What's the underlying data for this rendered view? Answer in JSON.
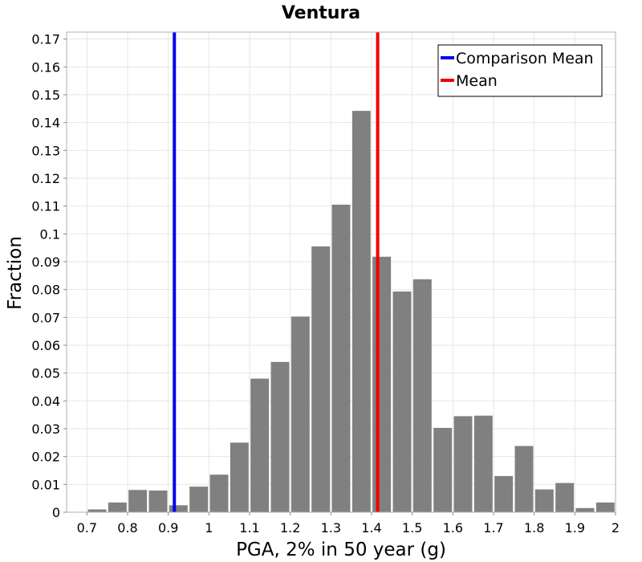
{
  "chart_data": {
    "type": "bar",
    "title": "Ventura",
    "xlabel": "PGA, 2% in 50 year (g)",
    "ylabel": "Fraction",
    "xlim": [
      0.65,
      2.0
    ],
    "ylim": [
      0,
      0.1725
    ],
    "xticks": [
      "0.7",
      "0.8",
      "0.9",
      "1",
      "1.1",
      "1.2",
      "1.3",
      "1.4",
      "1.5",
      "1.6",
      "1.7",
      "1.8",
      "1.9",
      "2"
    ],
    "yticks": [
      "0",
      "0.01",
      "0.02",
      "0.03",
      "0.04",
      "0.05",
      "0.06",
      "0.07",
      "0.08",
      "0.09",
      "0.1",
      "0.11",
      "0.12",
      "0.13",
      "0.14",
      "0.15",
      "0.16",
      "0.17"
    ],
    "bin_width": 0.05,
    "bin_centers": [
      0.725,
      0.775,
      0.825,
      0.875,
      0.925,
      0.975,
      1.025,
      1.075,
      1.125,
      1.175,
      1.225,
      1.275,
      1.325,
      1.375,
      1.425,
      1.475,
      1.525,
      1.575,
      1.625,
      1.675,
      1.725,
      1.775,
      1.825,
      1.875,
      1.925,
      1.975
    ],
    "values": [
      0.001,
      0.0035,
      0.008,
      0.0078,
      0.0025,
      0.0092,
      0.0135,
      0.025,
      0.048,
      0.054,
      0.0703,
      0.0955,
      0.1105,
      0.1442,
      0.0918,
      0.0793,
      0.0837,
      0.0303,
      0.0345,
      0.0347,
      0.013,
      0.0238,
      0.0082,
      0.0105,
      0.0015,
      0.0035
    ],
    "bar_color": "#808080",
    "grid": true,
    "legend_position": "top-right",
    "reference_lines": [
      {
        "name": "Comparison Mean",
        "x": 0.915,
        "color": "#0000ee"
      },
      {
        "name": "Mean",
        "x": 1.415,
        "color": "#ee0000"
      }
    ]
  }
}
